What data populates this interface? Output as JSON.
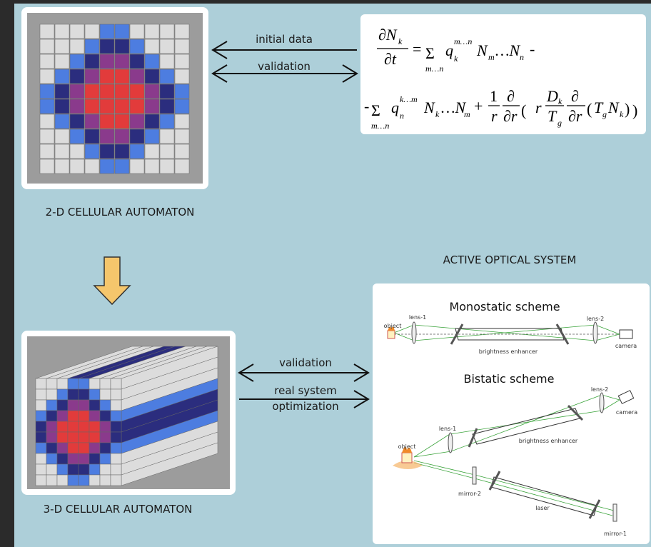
{
  "automaton_2d": {
    "caption": "2-D CELLULAR AUTOMATON"
  },
  "automaton_3d": {
    "caption": "3-D CELLULAR AUTOMATON"
  },
  "arrows_top": {
    "initial": "initial data",
    "validation": "validation"
  },
  "arrows_bottom": {
    "validation": "validation",
    "optimization": [
      "real system",
      "optimization"
    ]
  },
  "equation": {
    "tokens": [
      "∂N",
      "k",
      "∂t",
      "=",
      "Σ",
      "m…n",
      "q",
      "m…n",
      "k",
      "N",
      "m",
      "…N",
      "n",
      "-",
      "-",
      "Σ",
      "m…n",
      "q",
      "k…m",
      "n",
      "N",
      "k",
      "…N",
      "m",
      "+",
      "1",
      "r",
      "∂",
      "∂r",
      "(",
      "r",
      "D",
      "k",
      "T",
      "g",
      "∂",
      "∂r",
      "(",
      "T",
      "g",
      "N",
      "k",
      ")",
      ")"
    ]
  },
  "optical": {
    "title": "ACTIVE OPTICAL SYSTEM",
    "monostatic": {
      "title": "Monostatic scheme",
      "lens1": "lens-1",
      "object": "object",
      "lens2": "lens-2",
      "camera": "camera",
      "enhancer": "brightness enhancer"
    },
    "bistatic": {
      "title": "Bistatic scheme",
      "lens2": "lens-2",
      "camera": "camera",
      "lens1": "lens-1",
      "enhancer": "brightness enhancer",
      "object": "object",
      "mirror2": "mirror-2",
      "laser": "laser",
      "mirror1": "mirror-1"
    }
  }
}
